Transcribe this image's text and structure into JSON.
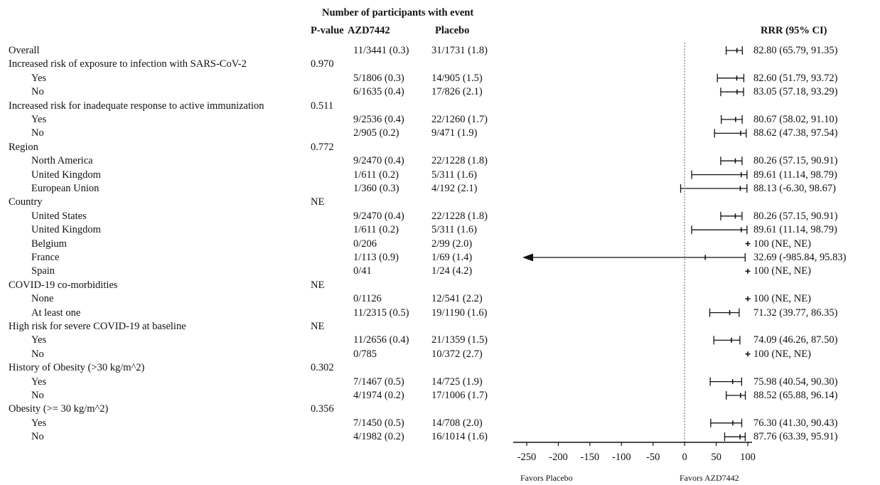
{
  "headers": {
    "group": "Number of participants with event",
    "pvalue": "P-value",
    "azd": "AZD7442",
    "placebo": "Placebo",
    "rrr": "RRR (95% CI)"
  },
  "chart_data": {
    "type": "forest",
    "xlabel_left": "Favors Placebo",
    "xlabel_right": "Favors AZD7442",
    "xlim": [
      -250,
      100
    ],
    "xticks": [
      -250,
      -200,
      -150,
      -100,
      -50,
      0,
      50,
      100
    ],
    "reference_line": 0,
    "rows": [
      {
        "label": "Overall",
        "indent": 0,
        "p": "",
        "azd": "11/3441 (0.3)",
        "pbo": "31/1731 (1.8)",
        "rrr_text": "82.80 (65.79, 91.35)",
        "est": 82.8,
        "lo": 65.79,
        "hi": 91.35
      },
      {
        "label": "Increased risk of exposure to infection with SARS-CoV-2",
        "indent": 0,
        "p": "0.970"
      },
      {
        "label": "Yes",
        "indent": 1,
        "p": "",
        "azd": "5/1806 (0.3)",
        "pbo": "14/905 (1.5)",
        "rrr_text": "82.60 (51.79, 93.72)",
        "est": 82.6,
        "lo": 51.79,
        "hi": 93.72
      },
      {
        "label": "No",
        "indent": 1,
        "p": "",
        "azd": "6/1635 (0.4)",
        "pbo": "17/826 (2.1)",
        "rrr_text": "83.05 (57.18, 93.29)",
        "est": 83.05,
        "lo": 57.18,
        "hi": 93.29
      },
      {
        "label": "Increased risk for inadequate response to active immunization",
        "indent": 0,
        "p": "0.511"
      },
      {
        "label": "Yes",
        "indent": 1,
        "p": "",
        "azd": "9/2536 (0.4)",
        "pbo": "22/1260 (1.7)",
        "rrr_text": "80.67 (58.02, 91.10)",
        "est": 80.67,
        "lo": 58.02,
        "hi": 91.1
      },
      {
        "label": "No",
        "indent": 1,
        "p": "",
        "azd": "2/905 (0.2)",
        "pbo": "9/471 (1.9)",
        "rrr_text": "88.62 (47.38, 97.54)",
        "est": 88.62,
        "lo": 47.38,
        "hi": 97.54
      },
      {
        "label": "Region",
        "indent": 0,
        "p": "0.772"
      },
      {
        "label": "North America",
        "indent": 1,
        "p": "",
        "azd": "9/2470 (0.4)",
        "pbo": "22/1228 (1.8)",
        "rrr_text": "80.26 (57.15, 90.91)",
        "est": 80.26,
        "lo": 57.15,
        "hi": 90.91
      },
      {
        "label": "United Kingdom",
        "indent": 1,
        "p": "",
        "azd": "1/611 (0.2)",
        "pbo": "5/311 (1.6)",
        "rrr_text": "89.61 (11.14, 98.79)",
        "est": 89.61,
        "lo": 11.14,
        "hi": 98.79
      },
      {
        "label": "European Union",
        "indent": 1,
        "p": "",
        "azd": "1/360 (0.3)",
        "pbo": "4/192 (2.1)",
        "rrr_text": "88.13 (-6.30, 98.67)",
        "est": 88.13,
        "lo": -6.3,
        "hi": 98.67
      },
      {
        "label": "Country",
        "indent": 0,
        "p": "NE"
      },
      {
        "label": "United States",
        "indent": 1,
        "p": "",
        "azd": "9/2470 (0.4)",
        "pbo": "22/1228 (1.8)",
        "rrr_text": "80.26 (57.15, 90.91)",
        "est": 80.26,
        "lo": 57.15,
        "hi": 90.91
      },
      {
        "label": "United Kingdom",
        "indent": 1,
        "p": "",
        "azd": "1/611 (0.2)",
        "pbo": "5/311 (1.6)",
        "rrr_text": "89.61 (11.14, 98.79)",
        "est": 89.61,
        "lo": 11.14,
        "hi": 98.79
      },
      {
        "label": "Belgium",
        "indent": 1,
        "p": "",
        "azd": "0/206",
        "pbo": "2/99 (2.0)",
        "rrr_text": "100 (NE, NE)",
        "est": 100
      },
      {
        "label": "France",
        "indent": 1,
        "p": "",
        "azd": "1/113 (0.9)",
        "pbo": "1/69 (1.4)",
        "rrr_text": "32.69 (-985.84, 95.83)",
        "est": 32.69,
        "lo": -985.84,
        "hi": 95.83,
        "arrow_left": true
      },
      {
        "label": "Spain",
        "indent": 1,
        "p": "",
        "azd": "0/41",
        "pbo": "1/24 (4.2)",
        "rrr_text": "100 (NE, NE)",
        "est": 100
      },
      {
        "label": "COVID-19 co-morbidities",
        "indent": 0,
        "p": "NE"
      },
      {
        "label": "None",
        "indent": 1,
        "p": "",
        "azd": "0/1126",
        "pbo": "12/541 (2.2)",
        "rrr_text": "100 (NE, NE)",
        "est": 100
      },
      {
        "label": "At least one",
        "indent": 1,
        "p": "",
        "azd": "11/2315 (0.5)",
        "pbo": "19/1190 (1.6)",
        "rrr_text": "71.32 (39.77, 86.35)",
        "est": 71.32,
        "lo": 39.77,
        "hi": 86.35
      },
      {
        "label": "High risk for severe COVID-19 at baseline",
        "indent": 0,
        "p": "NE"
      },
      {
        "label": "Yes",
        "indent": 1,
        "p": "",
        "azd": "11/2656 (0.4)",
        "pbo": "21/1359 (1.5)",
        "rrr_text": "74.09 (46.26, 87.50)",
        "est": 74.09,
        "lo": 46.26,
        "hi": 87.5
      },
      {
        "label": "No",
        "indent": 1,
        "p": "",
        "azd": "0/785",
        "pbo": "10/372 (2.7)",
        "rrr_text": "100 (NE, NE)",
        "est": 100
      },
      {
        "label": "History of Obesity (>30 kg/m^2)",
        "indent": 0,
        "p": "0.302"
      },
      {
        "label": "Yes",
        "indent": 1,
        "p": "",
        "azd": "7/1467 (0.5)",
        "pbo": "14/725 (1.9)",
        "rrr_text": "75.98 (40.54, 90.30)",
        "est": 75.98,
        "lo": 40.54,
        "hi": 90.3
      },
      {
        "label": "No",
        "indent": 1,
        "p": "",
        "azd": "4/1974 (0.2)",
        "pbo": "17/1006 (1.7)",
        "rrr_text": "88.52 (65.88, 96.14)",
        "est": 88.52,
        "lo": 65.88,
        "hi": 96.14
      },
      {
        "label": "Obesity (>= 30 kg/m^2)",
        "indent": 0,
        "p": "0.356"
      },
      {
        "label": "Yes",
        "indent": 1,
        "p": "",
        "azd": "7/1450 (0.5)",
        "pbo": "14/708 (2.0)",
        "rrr_text": "76.30 (41.30, 90.43)",
        "est": 76.3,
        "lo": 41.3,
        "hi": 90.43
      },
      {
        "label": "No",
        "indent": 1,
        "p": "",
        "azd": "4/1982 (0.2)",
        "pbo": "16/1014 (1.6)",
        "rrr_text": "87.76 (63.39, 95.91)",
        "est": 87.76,
        "lo": 63.39,
        "hi": 95.91
      }
    ]
  }
}
